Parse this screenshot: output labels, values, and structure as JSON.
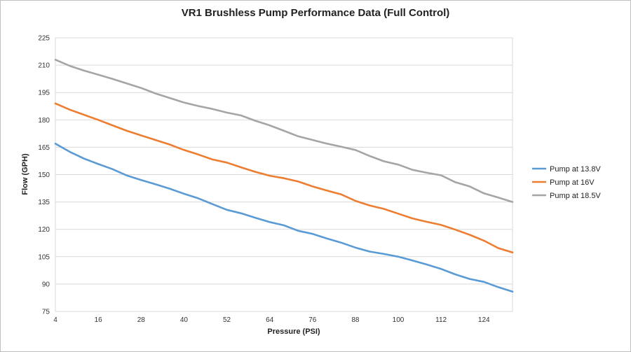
{
  "chart_data": {
    "type": "line",
    "title": "VR1 Brushless Pump Performance Data (Full Control)",
    "xlabel": "Pressure (PSI)",
    "ylabel": "Flow (GPH)",
    "xlim": [
      4,
      132
    ],
    "ylim": [
      75,
      225
    ],
    "x_ticks": [
      4,
      16,
      28,
      40,
      52,
      64,
      76,
      88,
      100,
      112,
      124
    ],
    "y_ticks": [
      75,
      90,
      105,
      120,
      135,
      150,
      165,
      180,
      195,
      210,
      225
    ],
    "grid": true,
    "legend_position": "right",
    "x": [
      4,
      8,
      12,
      16,
      20,
      24,
      28,
      32,
      36,
      40,
      44,
      48,
      52,
      56,
      60,
      64,
      68,
      72,
      76,
      80,
      84,
      88,
      92,
      96,
      100,
      104,
      108,
      112,
      116,
      120,
      124,
      128,
      132
    ],
    "series": [
      {
        "name": "Pump at 13.8V",
        "color": "#5b9bd5",
        "values": [
          167,
          162.5,
          158.8,
          155.8,
          153,
          149.5,
          147,
          144.7,
          142.3,
          139.5,
          137,
          133.8,
          130.7,
          128.8,
          126.3,
          124,
          122.2,
          119.2,
          117.5,
          115,
          112.7,
          110,
          107.8,
          106.5,
          105,
          102.9,
          100.7,
          98.3,
          95.3,
          92.8,
          91.2,
          88.3,
          85.8
        ]
      },
      {
        "name": "Pump at 16V",
        "color": "#ed7d31",
        "values": [
          189,
          185.6,
          182.8,
          180,
          177,
          174,
          171.5,
          169,
          166.5,
          163.5,
          161,
          158.3,
          156.6,
          154,
          151.5,
          149.4,
          148,
          146.2,
          143.5,
          141.3,
          139.2,
          135.6,
          133.1,
          131.2,
          128.6,
          126,
          124.1,
          122.4,
          119.8,
          117,
          113.8,
          109.7,
          107.3
        ]
      },
      {
        "name": "Pump at 18.5V",
        "color": "#a5a5a5",
        "values": [
          213,
          209.6,
          207,
          204.8,
          202.5,
          200,
          197.5,
          194.5,
          192,
          189.5,
          187.6,
          186,
          184,
          182.4,
          179.5,
          177,
          174,
          171,
          169,
          167,
          165.3,
          163.5,
          160.2,
          157.3,
          155.5,
          152.6,
          151,
          149.6,
          145.8,
          143.5,
          139.7,
          137.4,
          135
        ]
      }
    ]
  }
}
